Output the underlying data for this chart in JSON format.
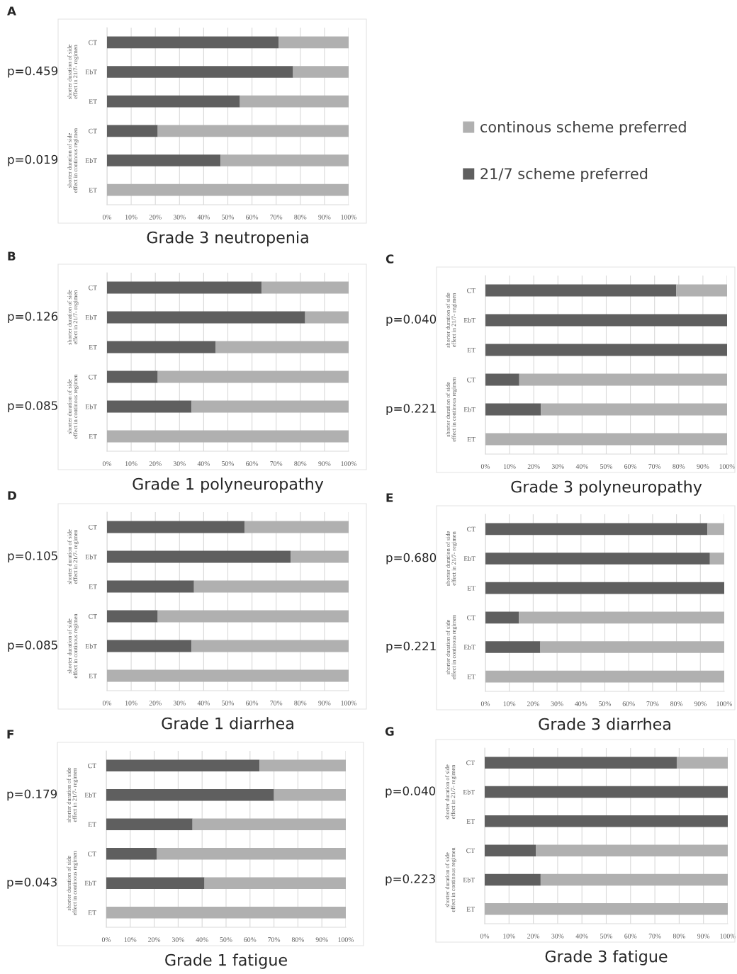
{
  "chart_data": [
    {
      "type": "bar",
      "orientation": "horizontal",
      "stacked": true,
      "title": "Grade 3 neutropenia",
      "categories": [
        "CT",
        "EbT",
        "ET",
        "CT",
        "EbT",
        "ET"
      ],
      "series": [
        {
          "name": "21/7 scheme preferred",
          "color": "#5f5f5f",
          "values": [
            71,
            77,
            55,
            21,
            47,
            0
          ]
        },
        {
          "name": "continous scheme preferred",
          "color": "#b0b0b0",
          "values": [
            29,
            23,
            45,
            79,
            53,
            100
          ]
        }
      ],
      "xlim": [
        0,
        100
      ],
      "xticks": [
        {
          "value": 0,
          "label": "0%"
        },
        {
          "value": 10,
          "label": "10%"
        },
        {
          "value": 20,
          "label": "20%"
        },
        {
          "value": 30,
          "label": "30%"
        },
        {
          "value": 40,
          "label": "40%"
        },
        {
          "value": 50,
          "label": "50%"
        },
        {
          "value": 60,
          "label": "60%"
        },
        {
          "value": 70,
          "label": "70%"
        },
        {
          "value": 80,
          "label": "80%"
        },
        {
          "value": 90,
          "label": "90%"
        },
        {
          "value": 100,
          "label": "100%"
        }
      ],
      "grid": "x",
      "legend": "right",
      "annotations": [
        "A",
        "p=0.459",
        "p=0.019",
        "shorter duration of side\neffect in 21/7- regimen",
        "shorter duration of side\neffect in continous regimen"
      ]
    },
    {
      "type": "bar",
      "orientation": "horizontal",
      "stacked": true,
      "title": "Grade 1 polyneuropathy",
      "categories": [
        "CT",
        "EbT",
        "ET",
        "CT",
        "EbT",
        "ET"
      ],
      "series": [
        {
          "color": "#5f5f5f",
          "values": [
            64,
            82,
            45,
            21,
            35,
            0
          ]
        },
        {
          "color": "#b0b0b0",
          "values": [
            36,
            18,
            55,
            79,
            65,
            100
          ]
        }
      ],
      "xlim": [
        0,
        100
      ],
      "xticks": [
        {
          "value": 0,
          "label": "0%"
        },
        {
          "value": 10,
          "label": "10%"
        },
        {
          "value": 20,
          "label": "20%"
        },
        {
          "value": 30,
          "label": "30%"
        },
        {
          "value": 40,
          "label": "40%"
        },
        {
          "value": 50,
          "label": "50%"
        },
        {
          "value": 60,
          "label": "60%"
        },
        {
          "value": 70,
          "label": "70%"
        },
        {
          "value": 80,
          "label": "80%"
        },
        {
          "value": 90,
          "label": "90%"
        },
        {
          "value": 100,
          "label": "100%"
        }
      ],
      "grid": "x",
      "annotations": [
        "B",
        "p=0.126",
        "p=0.085",
        "shorter duration of side\neffect in 21/7- regimen",
        "shorter duration of side\neffect in continous regimen"
      ]
    },
    {
      "type": "bar",
      "orientation": "horizontal",
      "stacked": true,
      "title": "Grade 3 polyneuropathy",
      "categories": [
        "CT",
        "EbT",
        "ET",
        "CT",
        "EbT",
        "ET"
      ],
      "series": [
        {
          "color": "#5f5f5f",
          "values": [
            79,
            100,
            100,
            14,
            23,
            0
          ]
        },
        {
          "color": "#b0b0b0",
          "values": [
            21,
            0,
            0,
            86,
            77,
            100
          ]
        }
      ],
      "xlim": [
        0,
        100
      ],
      "xticks": [
        {
          "value": 0,
          "label": "0%"
        },
        {
          "value": 10,
          "label": "10%"
        },
        {
          "value": 20,
          "label": "20%"
        },
        {
          "value": 30,
          "label": "30%"
        },
        {
          "value": 40,
          "label": "40%"
        },
        {
          "value": 50,
          "label": "50%"
        },
        {
          "value": 60,
          "label": "60%"
        },
        {
          "value": 70,
          "label": "70%"
        },
        {
          "value": 80,
          "label": "80%"
        },
        {
          "value": 90,
          "label": "90%"
        },
        {
          "value": 100,
          "label": "100%"
        }
      ],
      "grid": "x",
      "annotations": [
        "C",
        "p=0.040",
        "p=0.221",
        "shorter duration of side\neffect in 21/7- regimen",
        "shorter duration of side\neffect in continous regimen"
      ]
    },
    {
      "type": "bar",
      "orientation": "horizontal",
      "stacked": true,
      "title": "Grade 1 diarrhea",
      "categories": [
        "CT",
        "EbT",
        "ET",
        "CT",
        "EbT",
        "ET"
      ],
      "series": [
        {
          "color": "#5f5f5f",
          "values": [
            57,
            76,
            36,
            21,
            35,
            0
          ]
        },
        {
          "color": "#b0b0b0",
          "values": [
            43,
            24,
            64,
            79,
            65,
            100
          ]
        }
      ],
      "xlim": [
        0,
        100
      ],
      "xticks": [
        {
          "value": 0,
          "label": "0%"
        },
        {
          "value": 10,
          "label": "10%"
        },
        {
          "value": 20,
          "label": "20%"
        },
        {
          "value": 30,
          "label": "30%"
        },
        {
          "value": 40,
          "label": "40%"
        },
        {
          "value": 50,
          "label": "50%"
        },
        {
          "value": 60,
          "label": "60%"
        },
        {
          "value": 70,
          "label": "70%"
        },
        {
          "value": 80,
          "label": "80%"
        },
        {
          "value": 90,
          "label": "90%"
        },
        {
          "value": 100,
          "label": "100%"
        }
      ],
      "grid": "x",
      "annotations": [
        "D",
        "p=0.105",
        "p=0.085",
        "shorter duration of side\neffect in 21/7- regimen",
        "shorter duration of side\neffect in continous regimen"
      ]
    },
    {
      "type": "bar",
      "orientation": "horizontal",
      "stacked": true,
      "title": "Grade 3 diarrhea",
      "categories": [
        "CT",
        "EbT",
        "ET",
        "CT",
        "EbT",
        "ET"
      ],
      "series": [
        {
          "color": "#5f5f5f",
          "values": [
            93,
            94,
            100,
            14,
            23,
            0
          ]
        },
        {
          "color": "#b0b0b0",
          "values": [
            7,
            6,
            0,
            86,
            77,
            100
          ]
        }
      ],
      "xlim": [
        0,
        100
      ],
      "xticks": [
        {
          "value": 0,
          "label": "0%"
        },
        {
          "value": 10,
          "label": "10%"
        },
        {
          "value": 20,
          "label": "20%"
        },
        {
          "value": 30,
          "label": "30%"
        },
        {
          "value": 40,
          "label": "40%"
        },
        {
          "value": 50,
          "label": "50%"
        },
        {
          "value": 60,
          "label": "60%"
        },
        {
          "value": 70,
          "label": "70%"
        },
        {
          "value": 80,
          "label": "80%"
        },
        {
          "value": 90,
          "label": "90%"
        },
        {
          "value": 100,
          "label": "100%"
        }
      ],
      "grid": "x",
      "annotations": [
        "E",
        "p=0.680",
        "p=0.221",
        "shorter duration of side\neffect in 21/7- regimen",
        "shorter duration of side\neffect in continous regimen"
      ]
    },
    {
      "type": "bar",
      "orientation": "horizontal",
      "stacked": true,
      "title": "Grade 1 fatigue",
      "categories": [
        "CT",
        "EbT",
        "ET",
        "CT",
        "EbT",
        "ET"
      ],
      "series": [
        {
          "color": "#5f5f5f",
          "values": [
            64,
            70,
            36,
            21,
            41,
            0
          ]
        },
        {
          "color": "#b0b0b0",
          "values": [
            36,
            30,
            64,
            79,
            59,
            100
          ]
        }
      ],
      "xlim": [
        0,
        100
      ],
      "xticks": [
        {
          "value": 0,
          "label": "0%"
        },
        {
          "value": 10,
          "label": "10%"
        },
        {
          "value": 20,
          "label": "20%"
        },
        {
          "value": 30,
          "label": "30%"
        },
        {
          "value": 40,
          "label": "40%"
        },
        {
          "value": 50,
          "label": "50%"
        },
        {
          "value": 60,
          "label": "60%"
        },
        {
          "value": 70,
          "label": "70%"
        },
        {
          "value": 80,
          "label": "80%"
        },
        {
          "value": 90,
          "label": "90%"
        },
        {
          "value": 100,
          "label": "100%"
        }
      ],
      "grid": "x",
      "annotations": [
        "F",
        "p=0.179",
        "p=0.043",
        "shorter duration of side\neffect in 21/7- regimen",
        "shorter duration of side\neffect in continous regimen"
      ]
    },
    {
      "type": "bar",
      "orientation": "horizontal",
      "stacked": true,
      "title": "Grade 3 fatigue",
      "categories": [
        "CT",
        "EbT",
        "ET",
        "CT",
        "EbT",
        "ET"
      ],
      "series": [
        {
          "color": "#5f5f5f",
          "values": [
            79,
            100,
            100,
            21,
            23,
            0
          ]
        },
        {
          "color": "#b0b0b0",
          "values": [
            21,
            0,
            0,
            79,
            77,
            100
          ]
        }
      ],
      "xlim": [
        0,
        100
      ],
      "xticks": [
        {
          "value": 0,
          "label": "0%"
        },
        {
          "value": 10,
          "label": "10%"
        },
        {
          "value": 20,
          "label": "20%"
        },
        {
          "value": 30,
          "label": "30%"
        },
        {
          "value": 40,
          "label": "40%"
        },
        {
          "value": 50,
          "label": "50%"
        },
        {
          "value": 60,
          "label": "60%"
        },
        {
          "value": 70,
          "label": "70%"
        },
        {
          "value": 80,
          "label": "80%"
        },
        {
          "value": 90,
          "label": "90%"
        },
        {
          "value": 100,
          "label": "100%"
        }
      ],
      "grid": "x",
      "annotations": [
        "G",
        "p=0.040",
        "p=0.223",
        "shorter duration of side\neffect in 21/7- regimen",
        "shorter duration of side\neffect in continous regimen"
      ]
    }
  ]
}
